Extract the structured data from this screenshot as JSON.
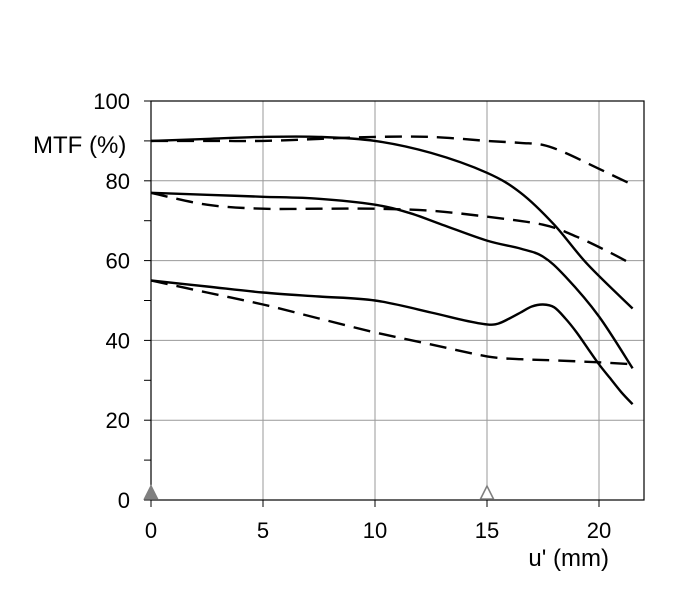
{
  "chart_data": {
    "type": "line",
    "title": "",
    "ylabel": "MTF (%)",
    "xlabel": "u' (mm)",
    "xlim": [
      0,
      21.7
    ],
    "ylim": [
      0,
      100
    ],
    "x_ticks": [
      0,
      5,
      10,
      15,
      20
    ],
    "y_ticks": [
      0,
      20,
      40,
      60,
      80,
      100
    ],
    "y_minor_ticks": [
      10,
      30,
      50,
      70,
      90
    ],
    "grid": true,
    "markers": [
      {
        "x": 0,
        "shape": "triangle",
        "style": "filled",
        "color": "#808080"
      },
      {
        "x": 15,
        "shape": "triangle",
        "style": "hollow",
        "color": "#808080"
      }
    ],
    "series": [
      {
        "style": "solid",
        "color": "#000000",
        "x": [
          0,
          2.5,
          5,
          7.5,
          10,
          12.5,
          15,
          16.5,
          18,
          19.5,
          21.5
        ],
        "y": [
          90,
          90.5,
          91,
          91,
          90,
          87,
          82,
          77,
          69,
          59,
          48
        ]
      },
      {
        "style": "dashed",
        "color": "#000000",
        "x": [
          0,
          2.5,
          5,
          7.5,
          10,
          12.5,
          15,
          16.5,
          17.5,
          18.5,
          20,
          21.5
        ],
        "y": [
          90,
          90,
          90,
          90.5,
          91,
          91,
          90,
          89.5,
          89,
          87,
          83,
          79
        ]
      },
      {
        "style": "solid",
        "color": "#000000",
        "x": [
          0,
          2.5,
          5,
          7.5,
          10,
          11.5,
          13,
          15,
          16.5,
          17.5,
          18.5,
          20,
          21.5
        ],
        "y": [
          77,
          76.5,
          76,
          75.5,
          74,
          72,
          69,
          65,
          63,
          61,
          56,
          46,
          33
        ]
      },
      {
        "style": "dashed",
        "color": "#000000",
        "x": [
          0,
          2.5,
          5,
          7.5,
          10,
          12.5,
          15,
          17.5,
          19,
          20.5,
          21.5
        ],
        "y": [
          77,
          74,
          73,
          73,
          73,
          72.5,
          71,
          69,
          66,
          62,
          59
        ]
      },
      {
        "style": "solid",
        "color": "#000000",
        "x": [
          0,
          2.5,
          5,
          7.5,
          10,
          12.5,
          14,
          15,
          15.5,
          16,
          16.5,
          17,
          17.5,
          18,
          18.5,
          19,
          19.5,
          20,
          20.5,
          21,
          21.5
        ],
        "y": [
          55,
          53.5,
          52,
          51,
          50,
          47,
          45,
          44,
          44.2,
          45.5,
          47,
          48.5,
          49,
          48.3,
          45.5,
          42,
          38,
          34,
          30.5,
          27,
          24
        ]
      },
      {
        "style": "dashed",
        "color": "#000000",
        "x": [
          0,
          2.5,
          5,
          7.5,
          10,
          12.5,
          15,
          16.5,
          18,
          20,
          21.5
        ],
        "y": [
          55,
          52,
          49,
          45.5,
          42,
          39,
          36,
          35.3,
          35,
          34.5,
          34
        ]
      }
    ]
  }
}
